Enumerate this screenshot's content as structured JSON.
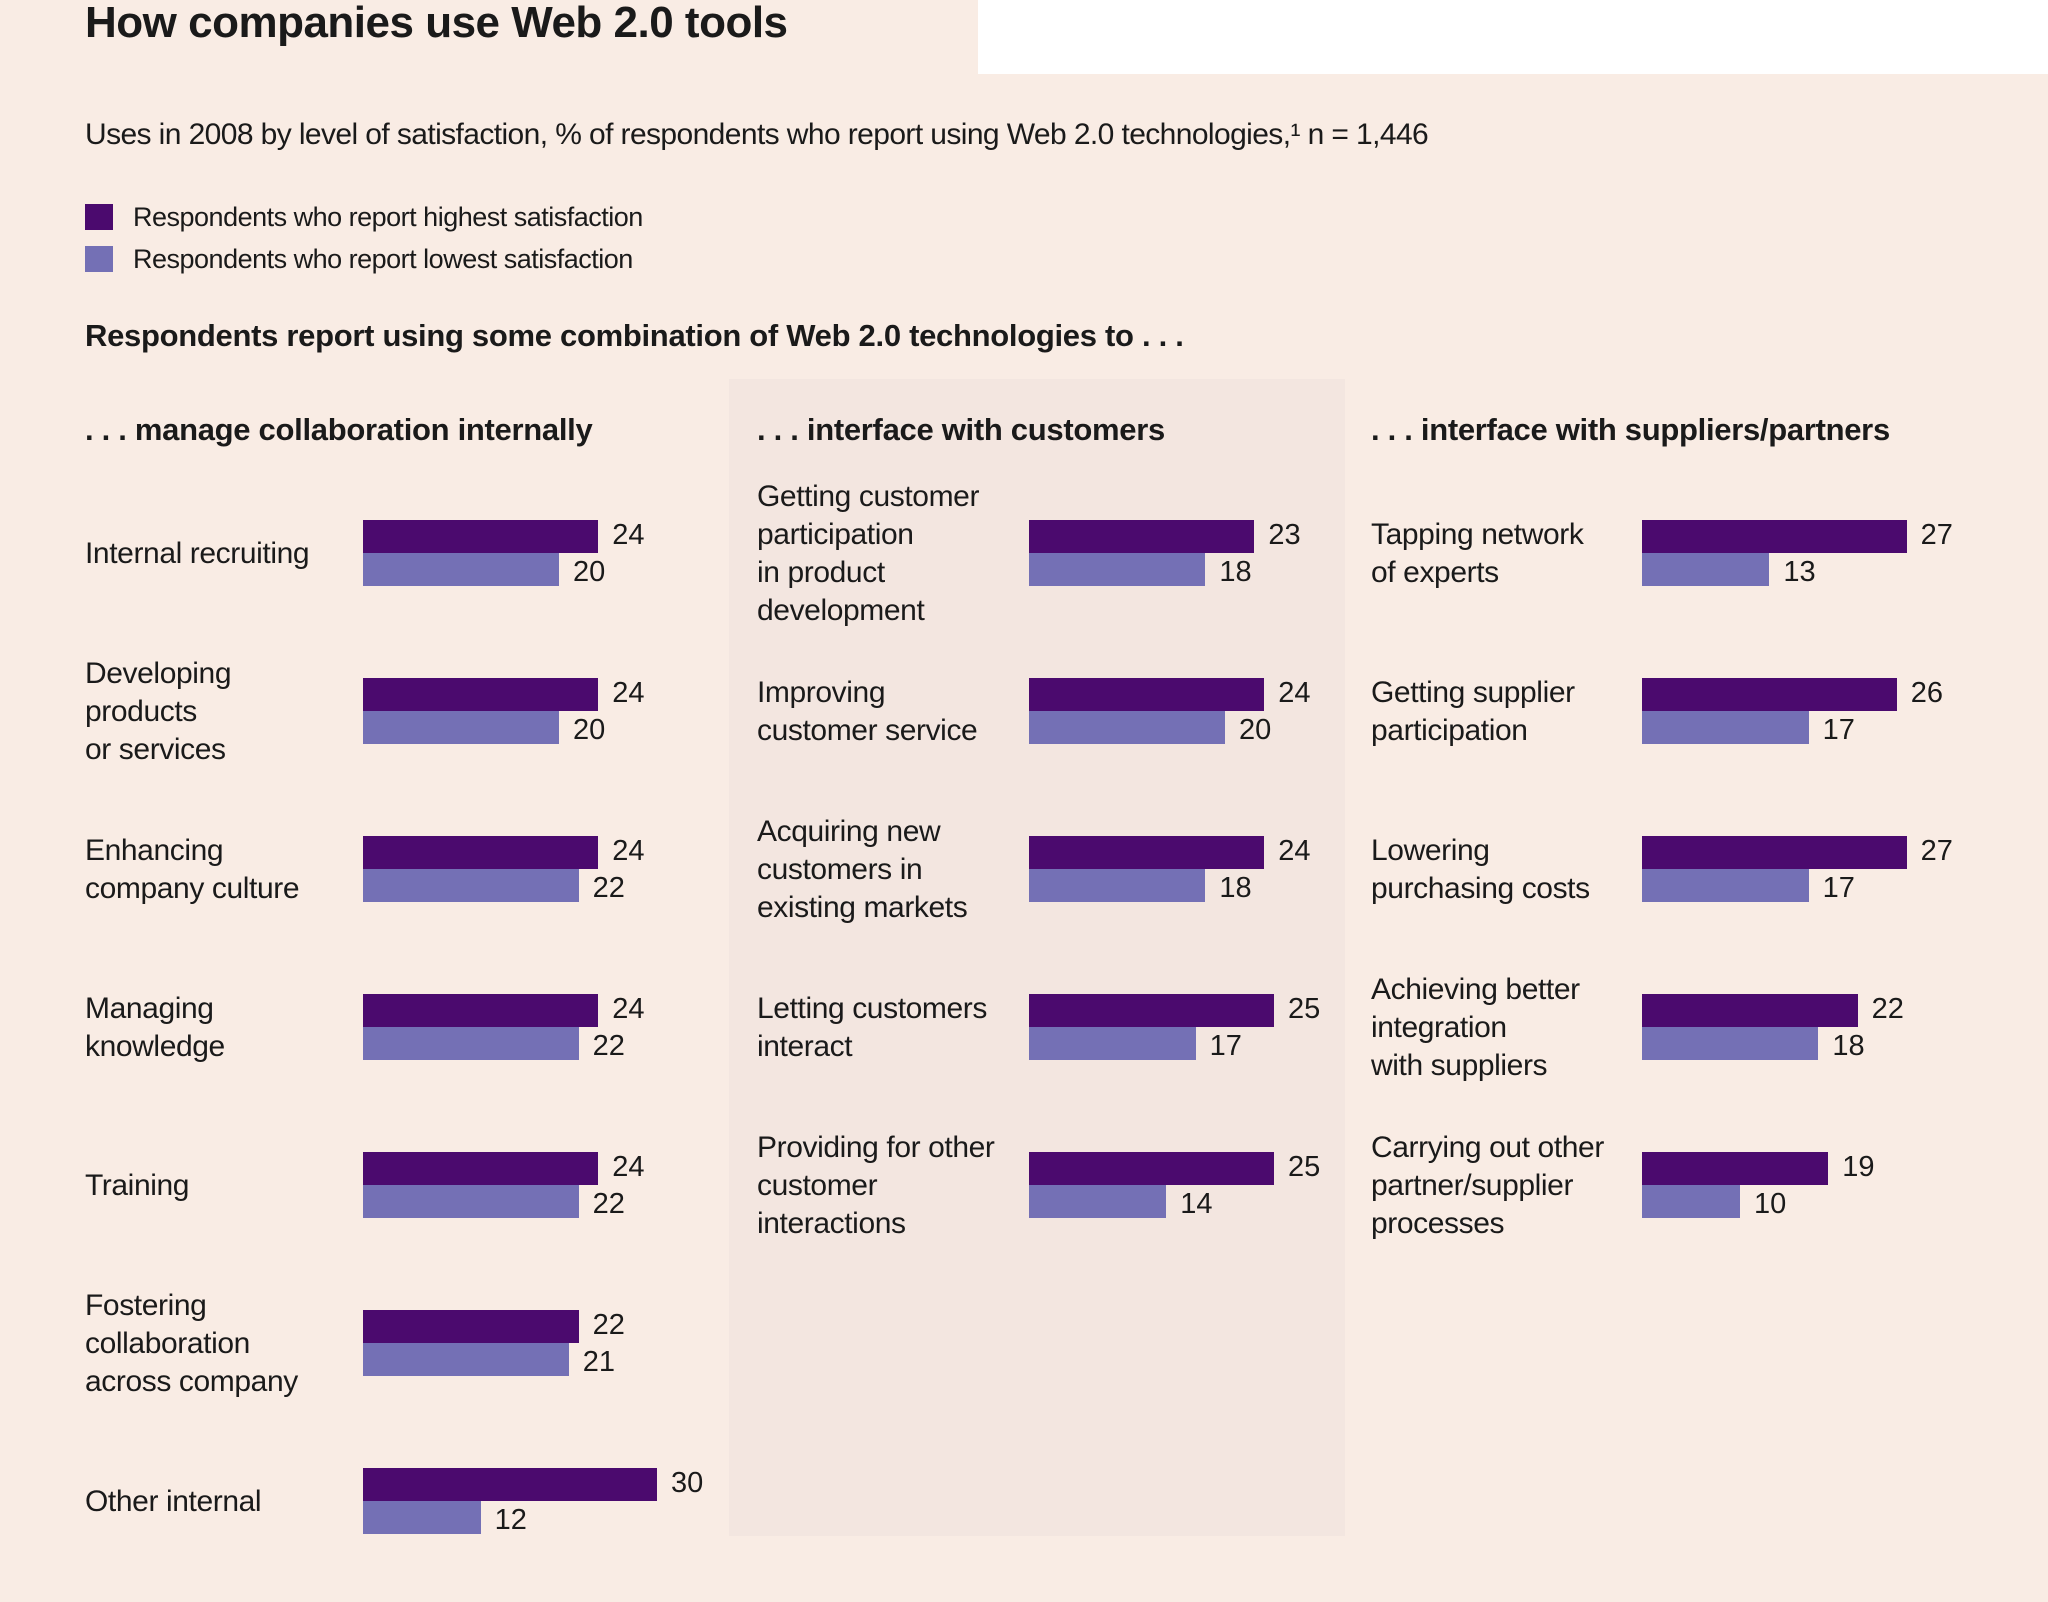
{
  "title": "How companies use Web 2.0 tools",
  "subtitle": "Uses in 2008 by level of satisfaction, % of respondents who report using Web 2.0 technologies,¹ n = 1,446",
  "legend": [
    {
      "label": "Respondents who report highest satisfaction",
      "color": "#4b0a6e"
    },
    {
      "label": "Respondents who report lowest satisfaction",
      "color": "#7470b5"
    }
  ],
  "intro": "Respondents report using some combination of Web 2.0 technologies to . . .",
  "chart_data": [
    {
      "type": "bar",
      "orientation": "horizontal",
      "title": ". . . manage collaboration internally",
      "categories": [
        "Internal recruiting",
        "Developing\nproducts\nor services",
        "Enhancing\ncompany culture",
        "Managing\nknowledge",
        "Training",
        "Fostering\ncollaboration\nacross company",
        "Other internal"
      ],
      "series": [
        {
          "name": "Respondents who report highest satisfaction",
          "values": [
            24,
            24,
            24,
            24,
            24,
            22,
            30
          ]
        },
        {
          "name": "Respondents who report lowest satisfaction",
          "values": [
            20,
            20,
            22,
            22,
            22,
            21,
            12
          ]
        }
      ]
    },
    {
      "type": "bar",
      "orientation": "horizontal",
      "title": ". . . interface with customers",
      "categories": [
        "Getting customer\nparticipation\nin product\ndevelopment",
        "Improving\ncustomer service",
        "Acquiring new\ncustomers in\nexisting markets",
        "Letting customers\ninteract",
        "Providing for other\ncustomer\ninteractions"
      ],
      "series": [
        {
          "name": "Respondents who report highest satisfaction",
          "values": [
            23,
            24,
            24,
            25,
            25
          ]
        },
        {
          "name": "Respondents who report lowest satisfaction",
          "values": [
            18,
            20,
            18,
            17,
            14
          ]
        }
      ]
    },
    {
      "type": "bar",
      "orientation": "horizontal",
      "title": ". . . interface with suppliers/partners",
      "categories": [
        "Tapping network\nof experts",
        "Getting supplier\nparticipation",
        "Lowering\npurchasing costs",
        "Achieving better\nintegration\nwith suppliers",
        "Carrying out other\npartner/supplier\nprocesses"
      ],
      "series": [
        {
          "name": "Respondents who report highest satisfaction",
          "values": [
            27,
            26,
            27,
            22,
            19
          ]
        },
        {
          "name": "Respondents who report lowest satisfaction",
          "values": [
            13,
            17,
            17,
            18,
            10
          ]
        }
      ]
    }
  ]
}
